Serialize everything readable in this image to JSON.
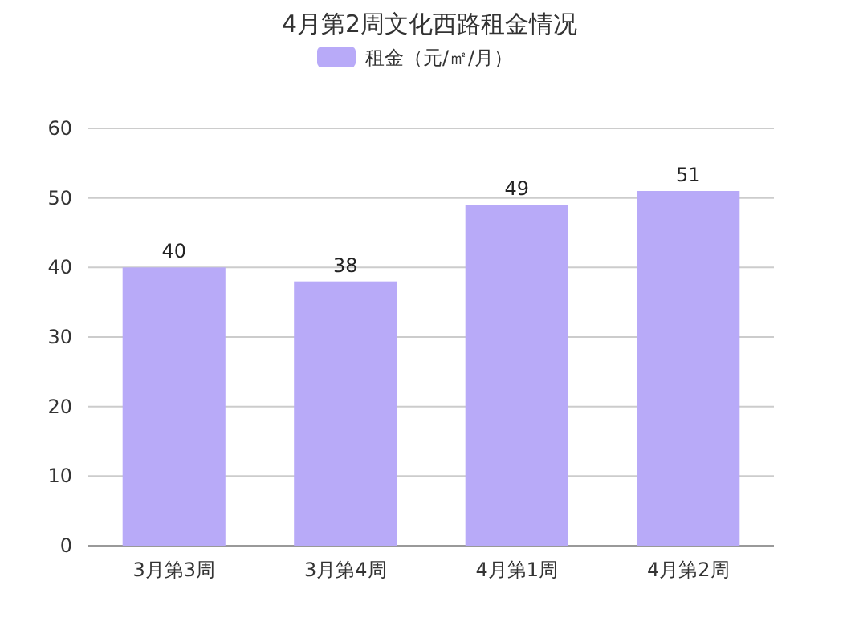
{
  "chart_data": {
    "type": "bar",
    "title": "4月第2周文化西路租金情况",
    "categories": [
      "3月第3周",
      "3月第4周",
      "4月第1周",
      "4月第2周"
    ],
    "series": [
      {
        "name": "租金（元/㎡/月）",
        "color": "#b8aaf8",
        "values": [
          40,
          38,
          49,
          51
        ]
      }
    ],
    "ylim": [
      0,
      60
    ],
    "yticks": [
      0,
      10,
      20,
      30,
      40,
      50,
      60
    ],
    "grid": "y",
    "legend": "top",
    "data_labels": true
  }
}
